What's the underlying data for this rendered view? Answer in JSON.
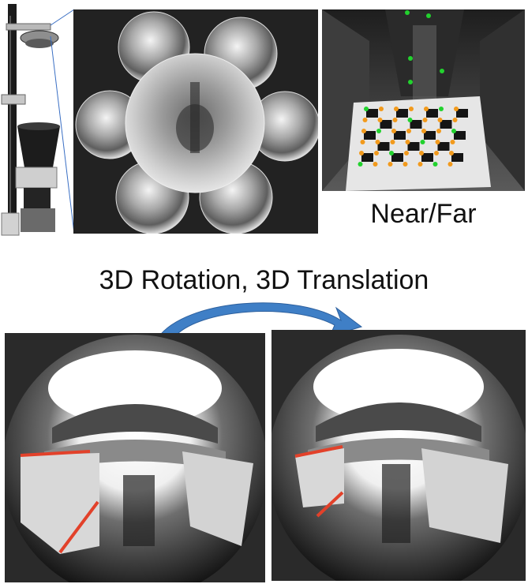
{
  "labels": {
    "near_far": "Near/Far",
    "transform": "3D Rotation, 3D Translation"
  },
  "colors": {
    "arrow_blue": "#3f7fc6",
    "edge_red": "#e2412a",
    "dot_orange": "#f29a1c",
    "dot_green": "#22d22e",
    "leader_line_blue": "#3a6fc4"
  },
  "panels": [
    {
      "name": "camera-rig-photo"
    },
    {
      "name": "mirror-array-photo"
    },
    {
      "name": "checkerboard-feature-photo"
    },
    {
      "name": "fisheye-view-left"
    },
    {
      "name": "fisheye-view-right"
    }
  ]
}
